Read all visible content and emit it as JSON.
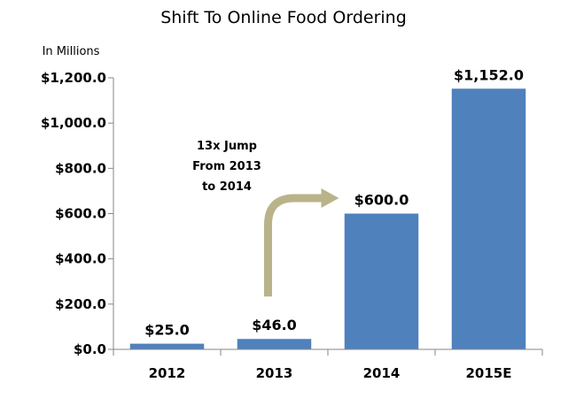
{
  "chart_data": {
    "type": "bar",
    "title": "Shift To Online Food Ordering",
    "unit_label": "In Millions",
    "categories": [
      "2012",
      "2013",
      "2014",
      "2015E"
    ],
    "values": [
      25.0,
      46.0,
      600.0,
      1152.0
    ],
    "data_labels": [
      "$25.0",
      "$46.0",
      "$600.0",
      "$1,152.0"
    ],
    "ylim": [
      0,
      1200
    ],
    "yticks": [
      0,
      200,
      400,
      600,
      800,
      1000,
      1200
    ],
    "ytick_labels": [
      "$0.0",
      "$200.0",
      "$400.0",
      "$600.0",
      "$800.0",
      "$1,000.0",
      "$1,200.0"
    ],
    "grid": false,
    "legend": "none",
    "annotation": {
      "lines": [
        "13x Jump",
        "From 2013",
        "to 2014"
      ],
      "from_category": "2013",
      "to_category": "2014"
    },
    "colors": {
      "bar": "#4f81bd",
      "arrow": "#b9b38a",
      "axis": "#868686"
    }
  }
}
